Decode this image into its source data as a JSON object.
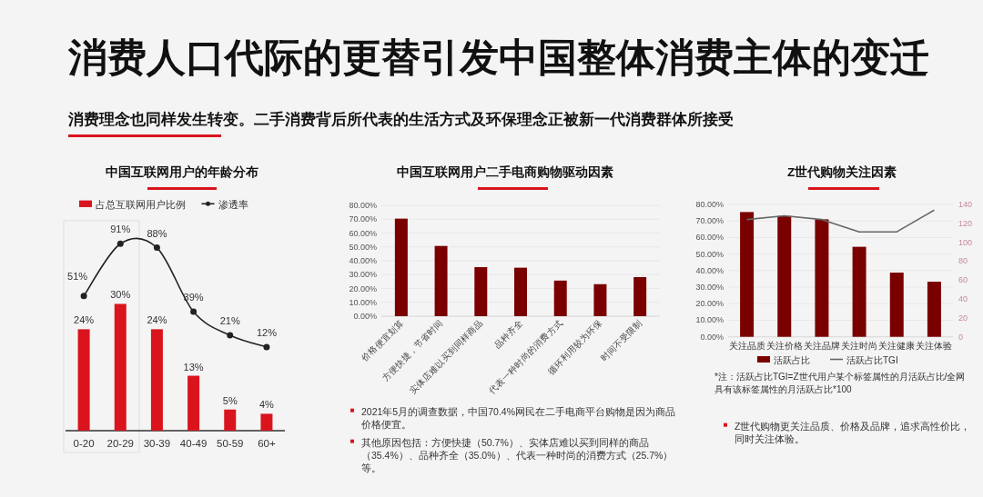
{
  "chart_data": [
    {
      "type": "other",
      "title": "消费人口代际的更替引发中国整体消费主体的变迁",
      "subtitle": "消费理念也同样发生转变。二手消费背后所代表的生活方式及环保理念正被新一代消费群体所接受"
    },
    {
      "type": "bar",
      "title": "中国互联网用户的年龄分布",
      "categories": [
        "0-20",
        "20-29",
        "30-39",
        "40-49",
        "50-59",
        "60+"
      ],
      "series": [
        {
          "name": "占总互联网用户比例",
          "color": "#d9141d",
          "values": [
            24,
            30,
            24,
            13,
            5,
            4
          ],
          "value_labels": [
            "24%",
            "30%",
            "24%",
            "13%",
            "5%",
            "4%"
          ]
        },
        {
          "name": "渗透率",
          "type": "line",
          "axis": "y2",
          "marker": "circle",
          "color": "#222222",
          "values": [
            51,
            91,
            88,
            39,
            21,
            12
          ],
          "value_labels": [
            "51%",
            "91%",
            "88%",
            "39%",
            "21%",
            "12%"
          ]
        }
      ],
      "tick_labels": "x",
      "legend": "top"
    },
    {
      "type": "bar",
      "title": "中国互联网用户二手电商购物驱动因素",
      "categories": [
        "价格便宜划算",
        "方便快捷，节省时间",
        "实体店难以买到同样商品",
        "品种齐全",
        "代表一种时尚的消费方式",
        "循环利用较为环保",
        "时间不受限制"
      ],
      "series": [
        {
          "color": "#7a0000",
          "values": [
            70.4,
            50.7,
            35.4,
            35.0,
            25.7,
            23.1,
            28.2
          ]
        }
      ],
      "ylim": [
        0,
        80
      ],
      "yticks": [
        {
          "value": 0,
          "label": "0.00%"
        },
        {
          "value": 10,
          "label": "10.00%"
        },
        {
          "value": 20,
          "label": "20.00%"
        },
        {
          "value": 30,
          "label": "30.00%"
        },
        {
          "value": 40,
          "label": "40.00%"
        },
        {
          "value": 50,
          "label": "50.00%"
        },
        {
          "value": 60,
          "label": "60.00%"
        },
        {
          "value": 70,
          "label": "70.00%"
        },
        {
          "value": 80,
          "label": "80.00%"
        }
      ],
      "grid": "y",
      "annotations": [
        "2021年5月的调查数据，中国70.4%网民在二手电商平台购物是因为商品价格便宜。",
        "其他原因包括：方便快捷（50.7%）、实体店难以买到同样的商品（35.4%）、品种齐全（35.0%）、代表一种时尚的消费方式（25.7%）等。"
      ]
    },
    {
      "type": "bar",
      "title": "Z世代购物关注因素",
      "categories": [
        "关注品质",
        "关注价格",
        "关注品牌",
        "关注时尚",
        "关注健康",
        "关注体验"
      ],
      "series": [
        {
          "name": "活跃占比",
          "color": "#7a0000",
          "values": [
            75.4,
            73.0,
            71.0,
            54.4,
            38.8,
            33.3
          ]
        },
        {
          "name": "活跃占比TGI",
          "type": "line",
          "axis": "y2",
          "color": "#666666",
          "values": [
            124,
            128,
            124,
            111,
            111,
            134
          ]
        }
      ],
      "ylim": [
        0,
        80
      ],
      "yticks": [
        {
          "value": 0,
          "label": "0.00%"
        },
        {
          "value": 10,
          "label": "10.00%"
        },
        {
          "value": 20,
          "label": "20.00%"
        },
        {
          "value": 30,
          "label": "30.00%"
        },
        {
          "value": 40,
          "label": "40.00%"
        },
        {
          "value": 50,
          "label": "50.00%"
        },
        {
          "value": 60,
          "label": "60.00%"
        },
        {
          "value": 70,
          "label": "70.00%"
        },
        {
          "value": 80,
          "label": "80.00%"
        }
      ],
      "y2lim": [
        0,
        140
      ],
      "y2ticks": [
        0,
        20,
        40,
        60,
        80,
        100,
        120,
        140
      ],
      "grid": "y",
      "legend": "bottom",
      "annotations": [
        "*注：活跃占比TGI=Z世代用户某个标签属性的月活跃占比/全网具有该标签属性的月活跃占比*100",
        "Z世代购物更关注品质、价格及品牌，追求高性价比，同时关注体验。"
      ]
    }
  ]
}
